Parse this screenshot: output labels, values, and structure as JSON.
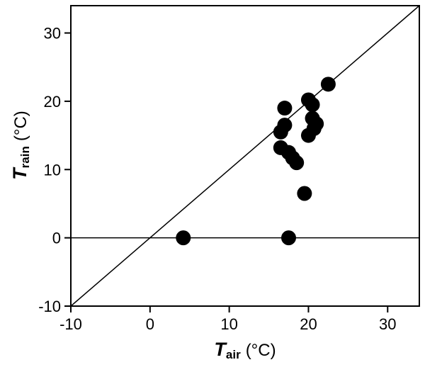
{
  "chart_data": {
    "type": "scatter",
    "title": "",
    "xlabel": {
      "symbol": "T",
      "subscript": "air",
      "unit": "(°C)"
    },
    "ylabel": {
      "symbol": "T",
      "subscript": "rain",
      "unit": "(°C)"
    },
    "xlim": [
      -10,
      34
    ],
    "ylim": [
      -10,
      34
    ],
    "xticks": [
      -10,
      0,
      10,
      20,
      30
    ],
    "yticks": [
      -10,
      0,
      10,
      20,
      30
    ],
    "grid": false,
    "legend": "none",
    "background": "#ffffff",
    "frame_color": "#000000",
    "point_color": "#000000",
    "point_radius_px": 10.5,
    "reference_lines": [
      {
        "name": "identity-line",
        "type": "diagonal",
        "from": [
          -10,
          -10
        ],
        "to": [
          34,
          34
        ],
        "color": "#000000"
      },
      {
        "name": "zero-line",
        "type": "horizontal",
        "y": 0,
        "color": "#000000"
      }
    ],
    "points": [
      [
        4.2,
        0
      ],
      [
        17.5,
        0
      ],
      [
        19.5,
        6.5
      ],
      [
        18.5,
        11
      ],
      [
        18,
        11.7
      ],
      [
        17.5,
        12.5
      ],
      [
        16.5,
        13.2
      ],
      [
        20,
        15
      ],
      [
        16.5,
        15.5
      ],
      [
        17,
        16.5
      ],
      [
        20.7,
        16
      ],
      [
        21,
        16.7
      ],
      [
        20.5,
        17.5
      ],
      [
        17,
        19
      ],
      [
        20.5,
        19.5
      ],
      [
        20,
        20.2
      ],
      [
        22.5,
        22.5
      ]
    ]
  }
}
